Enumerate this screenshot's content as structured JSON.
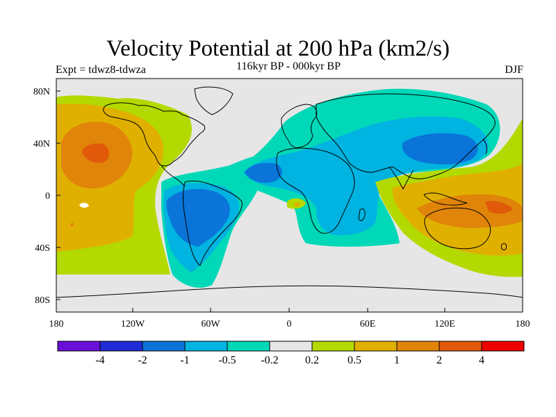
{
  "plot": {
    "title": "Velocity Potential at 200 hPa (km2/s)",
    "subtitle": "116kyr BP - 000kyr BP",
    "left_label": "Expt = tdwz8-tdwza",
    "right_label": "DJF",
    "lat_ticks": [
      "80N",
      "40N",
      "0",
      "40S",
      "80S"
    ],
    "lon_ticks": [
      "180",
      "120W",
      "60W",
      "0",
      "60E",
      "120E",
      "180"
    ]
  },
  "legend": {
    "colors": [
      "#6a0fd8",
      "#1f2bd4",
      "#0a74d8",
      "#00b3e0",
      "#00d8b8",
      "#e6e6e6",
      "#b3d900",
      "#e0b000",
      "#e0840a",
      "#e05a0a",
      "#ee0000"
    ],
    "labels": [
      "-4",
      "-2",
      "-1",
      "-0.5",
      "-0.2",
      "0.2",
      "0.5",
      "1",
      "2",
      "4"
    ]
  },
  "colors": {
    "frame": "#000000",
    "coast": "#000000",
    "neutral": "#e6e6e6"
  }
}
